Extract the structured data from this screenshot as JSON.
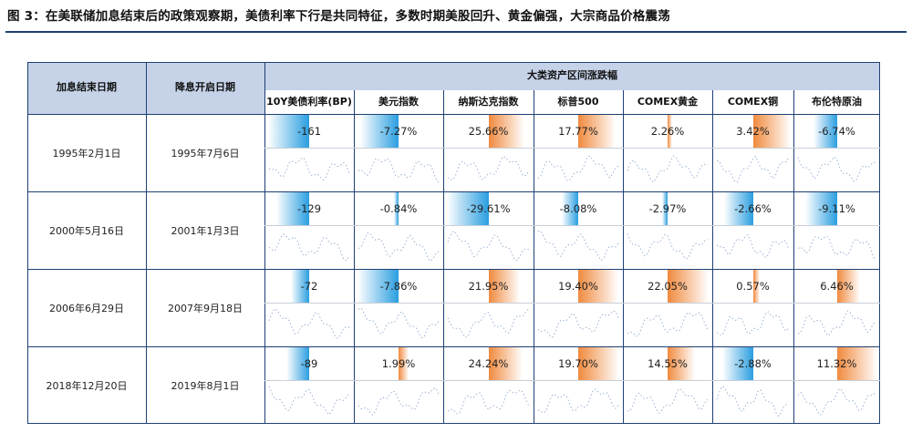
{
  "figure_title": "图 3：在美联储加息结束后的政策观察期，美债利率下行是共同特征，多数时期美股回升、黄金偏强，大宗商品价格震荡",
  "colors": {
    "header_bg": "#c5d2e8",
    "frame": "#1f3f74",
    "negative_bar": "#2a9ee0",
    "positive_bar": "#f08a3e"
  },
  "chart_data": {
    "type": "table",
    "title": "图 3：在美联储加息结束后的政策观察期，美债利率下行是共同特征，多数时期美股回升、黄金偏强，大宗商品价格震荡",
    "row_headers": [
      "加息结束日期",
      "降息开启日期"
    ],
    "group_header": "大类资产区间涨跌幅",
    "columns": [
      "10Y美债利率(BP)",
      "美元指数",
      "纳斯达克指数",
      "标普500",
      "COMEX黄金",
      "COMEX铜",
      "布伦特原油"
    ],
    "rows": [
      {
        "hike_end": "1995年2月1日",
        "cut_start": "1995年7月6日",
        "values": [
          "-161",
          "-7.27%",
          "25.66%",
          "17.77%",
          "2.26%",
          "3.42%",
          "-6.74%"
        ],
        "nums": [
          -161,
          -7.27,
          25.66,
          17.77,
          2.26,
          3.42,
          -6.74
        ]
      },
      {
        "hike_end": "2000年5月16日",
        "cut_start": "2001年1月3日",
        "values": [
          "-129",
          "-0.84%",
          "-29.61%",
          "-8.08%",
          "-2.97%",
          "-2.66%",
          "-9.11%"
        ],
        "nums": [
          -129,
          -0.84,
          -29.61,
          -8.08,
          -2.97,
          -2.66,
          -9.11
        ]
      },
      {
        "hike_end": "2006年6月29日",
        "cut_start": "2007年9月18日",
        "values": [
          "-72",
          "-7.86%",
          "21.95%",
          "19.40%",
          "22.05%",
          "0.57%",
          "6.46%"
        ],
        "nums": [
          -72,
          -7.86,
          21.95,
          19.4,
          22.05,
          0.57,
          6.46
        ]
      },
      {
        "hike_end": "2018年12月20日",
        "cut_start": "2019年8月1日",
        "values": [
          "-89",
          "1.99%",
          "24.24%",
          "19.70%",
          "14.55%",
          "-2.88%",
          "11.32%"
        ],
        "nums": [
          -89,
          1.99,
          24.24,
          19.7,
          14.55,
          -2.88,
          11.32
        ]
      }
    ]
  }
}
